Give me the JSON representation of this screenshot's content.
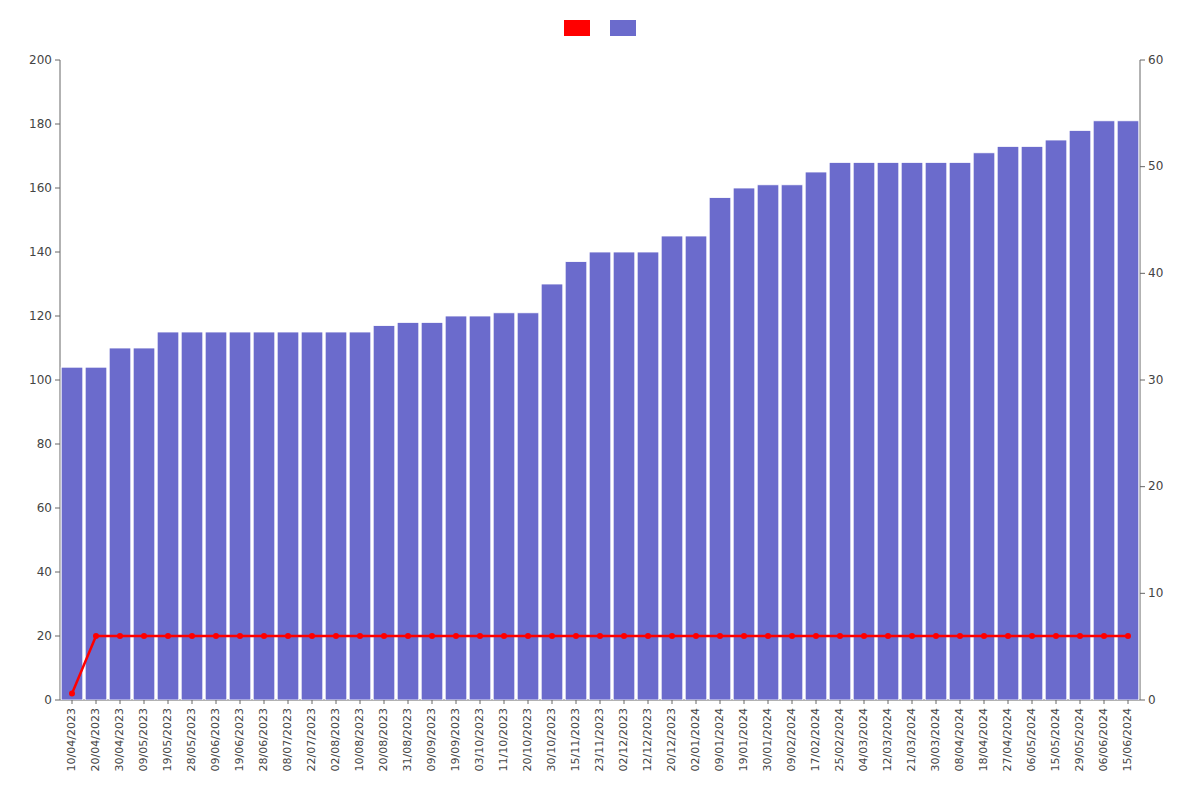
{
  "chart_data": {
    "type": "bar",
    "categories": [
      "10/04/2023",
      "20/04/2023",
      "30/04/2023",
      "09/05/2023",
      "19/05/2023",
      "28/05/2023",
      "09/06/2023",
      "19/06/2023",
      "28/06/2023",
      "08/07/2023",
      "22/07/2023",
      "02/08/2023",
      "10/08/2023",
      "20/08/2023",
      "31/08/2023",
      "09/09/2023",
      "19/09/2023",
      "03/10/2023",
      "11/10/2023",
      "20/10/2023",
      "30/10/2023",
      "15/11/2023",
      "23/11/2023",
      "02/12/2023",
      "12/12/2023",
      "20/12/2023",
      "02/01/2024",
      "09/01/2024",
      "19/01/2024",
      "30/01/2024",
      "09/02/2024",
      "17/02/2024",
      "25/02/2024",
      "04/03/2024",
      "12/03/2024",
      "21/03/2024",
      "30/03/2024",
      "08/04/2024",
      "18/04/2024",
      "27/04/2024",
      "06/05/2024",
      "15/05/2024",
      "29/05/2024",
      "06/06/2024",
      "15/06/2024"
    ],
    "series": [
      {
        "type": "bar",
        "color": "#6b6bcc",
        "values": [
          104,
          104,
          110,
          110,
          115,
          115,
          115,
          115,
          115,
          115,
          115,
          115,
          115,
          117,
          118,
          118,
          120,
          120,
          121,
          121,
          130,
          137,
          140,
          140,
          140,
          145,
          145,
          157,
          160,
          161,
          161,
          165,
          168,
          168,
          168,
          168,
          168,
          168,
          171,
          173,
          173,
          175,
          178,
          181,
          181
        ]
      },
      {
        "type": "line",
        "color": "#ff0000",
        "marker": "circle",
        "values": [
          2,
          20,
          20,
          20,
          20,
          20,
          20,
          20,
          20,
          20,
          20,
          20,
          20,
          20,
          20,
          20,
          20,
          20,
          20,
          20,
          20,
          20,
          20,
          20,
          20,
          20,
          20,
          20,
          20,
          20,
          20,
          20,
          20,
          20,
          20,
          20,
          20,
          20,
          20,
          20,
          20,
          20,
          20,
          20,
          20
        ]
      }
    ],
    "ylim": [
      0,
      200
    ],
    "yticks": [
      0,
      20,
      40,
      60,
      80,
      100,
      120,
      140,
      160,
      180,
      200
    ],
    "y2lim": [
      0,
      60
    ],
    "y2ticks": [
      0,
      10,
      20,
      30,
      40,
      50,
      60
    ],
    "grid": false,
    "legend": "top"
  }
}
